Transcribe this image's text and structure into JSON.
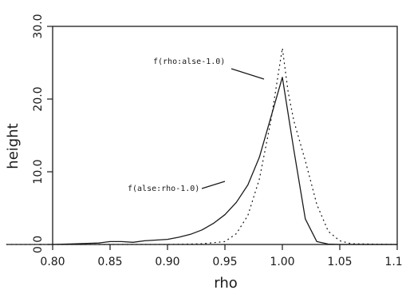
{
  "chart_data": {
    "type": "line",
    "title": "",
    "xlabel": "rho",
    "ylabel": "height",
    "xlim": [
      0.8,
      1.1
    ],
    "ylim": [
      0,
      30
    ],
    "xticks": [
      0.8,
      0.85,
      0.9,
      0.95,
      1.0,
      1.05,
      1.1
    ],
    "yticks": [
      0,
      10,
      20,
      30
    ],
    "xtick_labels": [
      "0.80",
      "0.85",
      "0.90",
      "0.95",
      "1.00",
      "1.05",
      "1.10"
    ],
    "ytick_labels": [
      "0.0",
      "10.0",
      "20.0",
      "30.0"
    ],
    "grid": false,
    "series": [
      {
        "name": "f(rho:alse-1.0)",
        "style": "solid",
        "x": [
          0.76,
          0.8,
          0.82,
          0.84,
          0.85,
          0.86,
          0.87,
          0.88,
          0.89,
          0.9,
          0.91,
          0.92,
          0.93,
          0.94,
          0.95,
          0.96,
          0.97,
          0.98,
          0.99,
          1.0,
          1.01,
          1.02,
          1.03,
          1.04,
          1.05,
          1.1
        ],
        "y": [
          0,
          0,
          0.1,
          0.2,
          0.4,
          0.4,
          0.3,
          0.5,
          0.6,
          0.7,
          1.0,
          1.4,
          2.0,
          2.9,
          4.1,
          5.8,
          8.2,
          12.0,
          17.5,
          23.0,
          13.0,
          3.5,
          0.4,
          0.05,
          0,
          0
        ]
      },
      {
        "name": "f(alse:rho-1.0)",
        "style": "dotted",
        "x": [
          0.76,
          0.9,
          0.93,
          0.95,
          0.96,
          0.97,
          0.98,
          0.99,
          1.0,
          1.005,
          1.01,
          1.02,
          1.03,
          1.04,
          1.05,
          1.06,
          1.1
        ],
        "y": [
          0,
          0,
          0.1,
          0.4,
          1.5,
          4.0,
          9.0,
          17.0,
          27.0,
          21.0,
          17.0,
          11.5,
          5.5,
          1.8,
          0.5,
          0.1,
          0
        ]
      }
    ],
    "annotations": [
      {
        "text": "f(rho:alse-1.0)",
        "series": 0
      },
      {
        "text": "f(alse:rho-1.0)",
        "series": 1
      }
    ]
  }
}
